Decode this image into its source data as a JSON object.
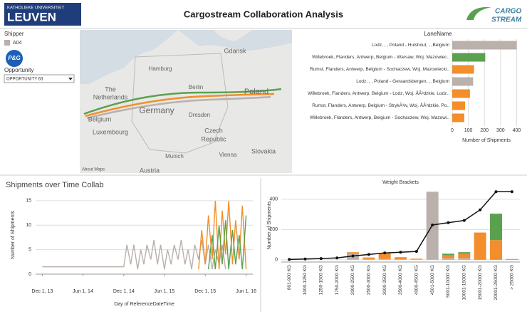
{
  "header": {
    "logo_top": "KATHOLIEKE UNIVERSITEIT",
    "logo_main": "LEUVEN",
    "title": "Cargostream Collaboration Analysis",
    "brand_top": "CARGO",
    "brand_bottom": "STREAM"
  },
  "filters": {
    "shipper_label": "Shipper",
    "shipper_value": "A04",
    "shipper_logo": "P&G",
    "opportunity_label": "Opportunity",
    "opportunity_value": "OPPORTUNITY 63"
  },
  "map": {
    "labels": [
      "Gdansk",
      "Hamburg",
      "Berlin",
      "Poland",
      "The",
      "Netherlands",
      "Germany",
      "Belgium",
      "Luxembourg",
      "Dresden",
      "Czech",
      "Republic",
      "Munich",
      "Vienna",
      "Slovakia",
      "Austria"
    ],
    "credit": "About Maps"
  },
  "chart_data": [
    {
      "type": "hbar",
      "header": "LaneName",
      "xlabel": "Number of Shipments",
      "categories": [
        "Lodz, , , Poland - Hulshout, , ,Belgium",
        "Willebroek, Flanders, Antwerp, Belgium - Warsaw, Woj. Mazowiec..",
        "Rumst, Flanders, Antwerp, Belgium - Sochaczew, Woj. Mazowiecki..",
        "Lodz, , , Poland - Geraardsbergen, , ,Belgium",
        "Willebroek, Flanders, Antwerp, Belgium - Lodz, Woj. ÅÂ³dzkie, Lodz..",
        "Rumst, Flanders, Antwerp, Belgium - StrykÃ³w, Woj. ÅÂ³dzkie, Po..",
        "Willebroek, Flanders, Antwerp, Belgium - Sochaczew, Woj. Mazowi.."
      ],
      "values": [
        400,
        205,
        135,
        130,
        110,
        80,
        75
      ],
      "colors": [
        "#bab0ac",
        "#59a14f",
        "#f28e2b",
        "#bab0ac",
        "#f28e2b",
        "#f28e2b",
        "#f28e2b"
      ],
      "xlim": [
        0,
        420
      ],
      "xticks": [
        0,
        100,
        200,
        300,
        400
      ]
    },
    {
      "type": "line",
      "title": "Shipments over Time Collab",
      "xlabel": "Day of ReferenceDateTime",
      "ylabel": "Number of Shipments",
      "xlim": [
        "2013-11-01",
        "2016-07-01"
      ],
      "xticks": [
        {
          "value": "2013-12-01",
          "label": "Dec 1, 13"
        },
        {
          "value": "2014-06-01",
          "label": "Jun 1, 14"
        },
        {
          "value": "2014-12-01",
          "label": "Dec 1, 14"
        },
        {
          "value": "2015-06-01",
          "label": "Jun 1, 15"
        },
        {
          "value": "2015-12-01",
          "label": "Dec 1, 15"
        },
        {
          "value": "2016-06-01",
          "label": "Jun 1, 16"
        }
      ],
      "ylim": [
        0,
        16
      ],
      "yticks": [
        0,
        5,
        10,
        15
      ],
      "series": [
        {
          "color": "#bab0ac",
          "x": [
            "2013-12-01",
            "2014-12-01",
            "2014-12-15",
            "2015-01-01",
            "2015-01-15",
            "2015-02-01",
            "2015-02-15",
            "2015-03-01",
            "2015-03-15",
            "2015-04-01",
            "2015-04-15",
            "2015-05-01",
            "2015-05-15",
            "2015-06-01",
            "2015-06-15",
            "2015-07-01",
            "2015-07-15",
            "2015-08-01",
            "2015-08-15",
            "2015-09-01",
            "2015-09-15",
            "2015-10-01",
            "2015-10-15",
            "2015-11-01",
            "2015-11-15",
            "2015-12-01",
            "2015-12-15",
            "2016-01-01",
            "2016-01-15",
            "2016-02-01",
            "2016-02-15",
            "2016-03-01"
          ],
          "values": [
            1.5,
            1.5,
            6,
            2,
            6,
            1,
            5,
            2,
            6,
            3,
            7,
            2,
            6,
            1,
            5,
            2,
            6,
            3,
            7,
            2,
            5,
            1,
            6,
            3,
            7,
            2,
            6,
            1,
            5,
            2,
            6,
            1
          ]
        },
        {
          "color": "#f28e2b",
          "x": [
            "2015-11-01",
            "2015-11-15",
            "2015-12-01",
            "2015-12-15",
            "2016-01-01",
            "2016-01-15",
            "2016-02-01",
            "2016-02-15",
            "2016-03-01",
            "2016-03-15",
            "2016-04-01",
            "2016-04-15",
            "2016-05-01",
            "2016-05-15",
            "2016-06-01"
          ],
          "values": [
            1,
            9,
            2,
            12,
            3,
            15,
            1,
            13,
            4,
            15,
            2,
            11,
            3,
            14,
            1
          ]
        },
        {
          "color": "#59a14f",
          "x": [
            "2015-12-15",
            "2016-01-01",
            "2016-01-15",
            "2016-02-01",
            "2016-02-15",
            "2016-03-01",
            "2016-03-15",
            "2016-04-01",
            "2016-04-15",
            "2016-05-01",
            "2016-05-15",
            "2016-06-01"
          ],
          "values": [
            1,
            8,
            1,
            10,
            2,
            11,
            1,
            9,
            2,
            8,
            1,
            12
          ]
        }
      ]
    },
    {
      "type": "combo",
      "title": "Weight Brackets",
      "ylabel": "Number of Shipments",
      "categories": [
        "801-900 KG",
        "1000-1250 KG",
        "1250-1500 KG",
        "1750-2000 KG",
        "2000-2500 KG",
        "2500-3000 KG",
        "3000-3500 KG",
        "3500-4000 KG",
        "4000-4500 KG",
        "4501-5000 KG",
        "5001-10000 KG",
        "10001-15000 KG",
        "15001-20000 KG",
        "20001-25000 KG",
        "> 25000 KG"
      ],
      "ylim": [
        -15,
        470
      ],
      "yticks": [
        0,
        200,
        400
      ],
      "series": [
        {
          "color": "#bab0ac",
          "values": [
            0,
            0,
            0,
            0,
            40,
            5,
            5,
            2,
            2,
            450,
            10,
            10,
            0,
            0,
            0
          ]
        },
        {
          "color": "#f28e2b",
          "values": [
            0,
            0,
            0,
            0,
            10,
            10,
            40,
            15,
            5,
            0,
            20,
            30,
            180,
            130,
            5
          ]
        },
        {
          "color": "#59a14f",
          "values": [
            0,
            0,
            0,
            0,
            0,
            0,
            0,
            0,
            0,
            0,
            10,
            10,
            0,
            175,
            0
          ]
        }
      ],
      "line": {
        "color": "#111111",
        "values": [
          2,
          5,
          8,
          12,
          25,
          35,
          45,
          50,
          55,
          230,
          245,
          260,
          330,
          450,
          450
        ]
      }
    }
  ]
}
